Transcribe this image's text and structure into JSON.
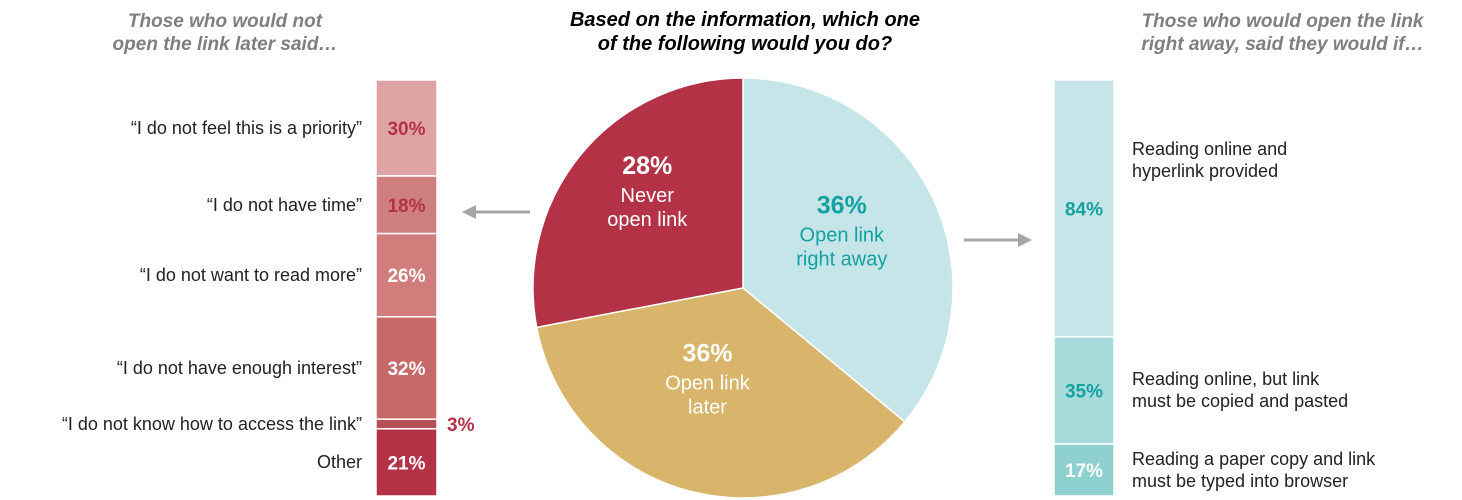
{
  "titles": {
    "left": "Those who would not\nopen the link later said…",
    "center": "Based on the information, which one\nof the following would you do?",
    "right": "Those who would open the link\nright away, said they would if…"
  },
  "chart_data": [
    {
      "type": "bar",
      "orientation": "stacked-vertical",
      "categories": [
        "“I do not feel this is a priority”",
        "“I do not have time”",
        "“I do not want to read more”",
        "“I do not have enough interest”",
        "“I do not know how to access the link”",
        "Other"
      ],
      "values": [
        30,
        18,
        26,
        32,
        3,
        21
      ],
      "value_labels": [
        "30%",
        "18%",
        "26%",
        "32%",
        "3%",
        "21%"
      ],
      "colors": [
        "#e0a3a3",
        "#cf7f80",
        "#d17d7c",
        "#c96869",
        "#b84f55",
        "#b43246"
      ],
      "label_colors": [
        "#b43246",
        "#b43246",
        "#ffffff",
        "#ffffff",
        "#b43246",
        "#ffffff"
      ]
    },
    {
      "type": "pie",
      "slices": [
        {
          "value": 36,
          "value_label": "36%",
          "label": "Open link\nright away",
          "color": "#c5e5e8",
          "text_color": "#13a1a1"
        },
        {
          "value": 36,
          "value_label": "36%",
          "label": "Open link\nlater",
          "color": "#d8b56a",
          "text_color": "#ffffff"
        },
        {
          "value": 28,
          "value_label": "28%",
          "label": "Never\nopen link",
          "color": "#b43246",
          "text_color": "#ffffff"
        }
      ]
    },
    {
      "type": "bar",
      "orientation": "stacked-vertical",
      "categories": [
        "Reading online and\nhyperlink provided",
        "Reading online, but link\nmust be copied and pasted",
        "Reading a paper copy and link\nmust be typed into browser"
      ],
      "values": [
        84,
        35,
        17
      ],
      "value_labels": [
        "84%",
        "35%",
        "17%"
      ],
      "colors": [
        "#c5e5e8",
        "#a8dadb",
        "#8ecfd0"
      ],
      "label_colors": [
        "#13a1a1",
        "#13a1a1",
        "#ffffff"
      ]
    }
  ]
}
